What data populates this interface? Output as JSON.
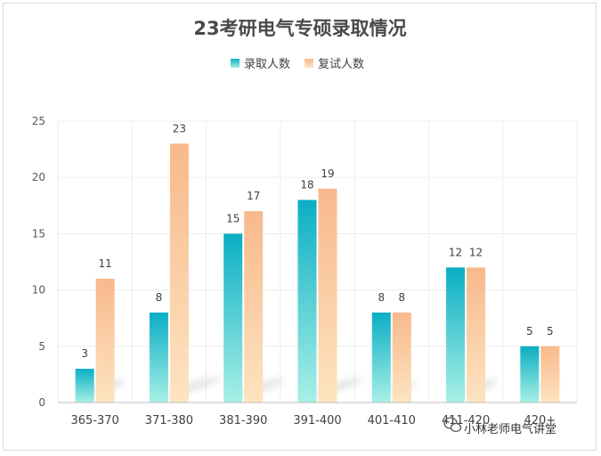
{
  "chart_data": {
    "type": "bar",
    "title": "23考研电气专硕录取情况",
    "categories": [
      "365-370",
      "371-380",
      "381-390",
      "391-400",
      "401-410",
      "411-420",
      "420+"
    ],
    "series": [
      {
        "name": "录取人数",
        "values": [
          3,
          8,
          15,
          18,
          8,
          12,
          5
        ],
        "color_top": "#0aaec4",
        "color_bottom": "#a8f0e6"
      },
      {
        "name": "复试人数",
        "values": [
          11,
          23,
          17,
          19,
          8,
          12,
          5
        ],
        "color_top": "#f8b98c",
        "color_bottom": "#fde4c0"
      }
    ],
    "yticks": [
      0,
      5,
      10,
      15,
      20,
      25
    ],
    "ylim": [
      0,
      25
    ],
    "xlabel": "",
    "ylabel": "",
    "legend": "top-center",
    "grid": true
  },
  "watermark": {
    "text": "小林老师电气讲堂"
  }
}
